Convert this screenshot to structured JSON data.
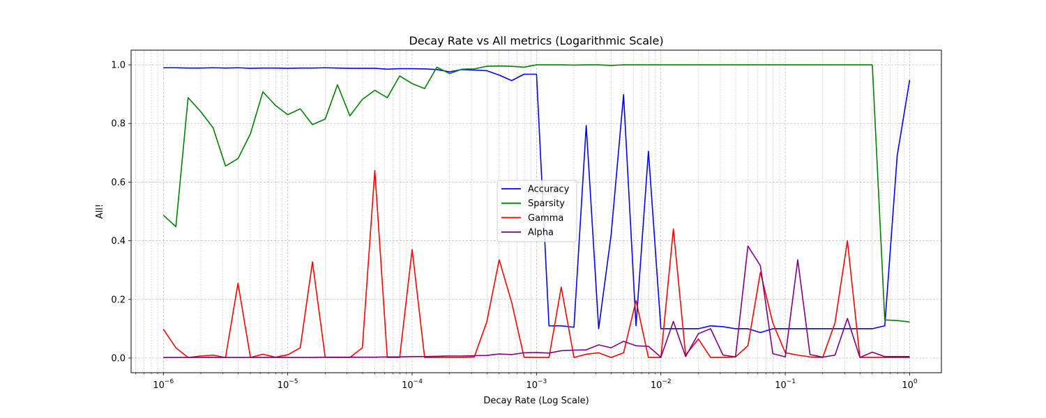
{
  "chart_data": {
    "type": "line",
    "title": "Decay Rate vs All metrics (Logarithmic Scale)",
    "xlabel": "Decay Rate (Log Scale)",
    "ylabel": "All!",
    "xscale": "log",
    "xlim": [
      5.5e-07,
      1.8
    ],
    "ylim": [
      -0.05,
      1.05
    ],
    "x_ticks": [
      {
        "value": 1e-06,
        "base": "10",
        "exp": "−6"
      },
      {
        "value": 1e-05,
        "base": "10",
        "exp": "−5"
      },
      {
        "value": 0.0001,
        "base": "10",
        "exp": "−4"
      },
      {
        "value": 0.001,
        "base": "10",
        "exp": "−3"
      },
      {
        "value": 0.01,
        "base": "10",
        "exp": "−2"
      },
      {
        "value": 0.1,
        "base": "10",
        "exp": "−1"
      },
      {
        "value": 1,
        "base": "10",
        "exp": "0"
      }
    ],
    "y_ticks": [
      "0.0",
      "0.2",
      "0.4",
      "0.6",
      "0.8",
      "1.0"
    ],
    "grid": true,
    "legend_position": "center",
    "series": [
      {
        "name": "Accuracy",
        "color": "#0000ff",
        "points": [
          [
            1e-06,
            0.99
          ],
          [
            1.26e-06,
            0.99
          ],
          [
            1.58e-06,
            0.989
          ],
          [
            2e-06,
            0.989
          ],
          [
            2.51e-06,
            0.99
          ],
          [
            3.16e-06,
            0.989
          ],
          [
            3.98e-06,
            0.99
          ],
          [
            5.01e-06,
            0.988
          ],
          [
            6.31e-06,
            0.989
          ],
          [
            7.94e-06,
            0.989
          ],
          [
            1e-05,
            0.988
          ],
          [
            1.26e-05,
            0.989
          ],
          [
            1.58e-05,
            0.989
          ],
          [
            2e-05,
            0.99
          ],
          [
            2.51e-05,
            0.989
          ],
          [
            3.16e-05,
            0.988
          ],
          [
            3.98e-05,
            0.988
          ],
          [
            5.01e-05,
            0.988
          ],
          [
            6.31e-05,
            0.985
          ],
          [
            7.94e-05,
            0.987
          ],
          [
            0.0001,
            0.987
          ],
          [
            0.000126,
            0.986
          ],
          [
            0.000158,
            0.984
          ],
          [
            0.0002,
            0.976
          ],
          [
            0.000251,
            0.984
          ],
          [
            0.000316,
            0.982
          ],
          [
            0.000398,
            0.98
          ],
          [
            0.000501,
            0.965
          ],
          [
            0.000631,
            0.946
          ],
          [
            0.000794,
            0.968
          ],
          [
            0.001,
            0.968
          ],
          [
            0.00126,
            0.11
          ],
          [
            0.00158,
            0.11
          ],
          [
            0.002,
            0.105
          ],
          [
            0.00251,
            0.793
          ],
          [
            0.00316,
            0.1
          ],
          [
            0.00398,
            0.42
          ],
          [
            0.00501,
            0.898
          ],
          [
            0.00631,
            0.11
          ],
          [
            0.00794,
            0.705
          ],
          [
            0.01,
            0.1
          ],
          [
            0.0126,
            0.1
          ],
          [
            0.0158,
            0.1
          ],
          [
            0.02,
            0.1
          ],
          [
            0.0251,
            0.11
          ],
          [
            0.0316,
            0.107
          ],
          [
            0.0398,
            0.1
          ],
          [
            0.0501,
            0.1
          ],
          [
            0.0631,
            0.087
          ],
          [
            0.0794,
            0.1
          ],
          [
            0.1,
            0.1
          ],
          [
            0.126,
            0.1
          ],
          [
            0.158,
            0.1
          ],
          [
            0.2,
            0.1
          ],
          [
            0.251,
            0.1
          ],
          [
            0.316,
            0.1
          ],
          [
            0.398,
            0.1
          ],
          [
            0.501,
            0.1
          ],
          [
            0.631,
            0.11
          ],
          [
            0.794,
            0.69
          ],
          [
            1.0,
            0.948
          ]
        ]
      },
      {
        "name": "Sparsity",
        "color": "#008000",
        "points": [
          [
            1e-06,
            0.487
          ],
          [
            1.26e-06,
            0.448
          ],
          [
            1.58e-06,
            0.888
          ],
          [
            2e-06,
            0.84
          ],
          [
            2.51e-06,
            0.785
          ],
          [
            3.16e-06,
            0.655
          ],
          [
            3.98e-06,
            0.68
          ],
          [
            5.01e-06,
            0.765
          ],
          [
            6.31e-06,
            0.908
          ],
          [
            7.94e-06,
            0.862
          ],
          [
            1e-05,
            0.83
          ],
          [
            1.26e-05,
            0.85
          ],
          [
            1.58e-05,
            0.796
          ],
          [
            2e-05,
            0.815
          ],
          [
            2.51e-05,
            0.932
          ],
          [
            3.16e-05,
            0.826
          ],
          [
            3.98e-05,
            0.882
          ],
          [
            5.01e-05,
            0.913
          ],
          [
            6.31e-05,
            0.888
          ],
          [
            7.94e-05,
            0.962
          ],
          [
            0.0001,
            0.936
          ],
          [
            0.000126,
            0.919
          ],
          [
            0.000158,
            0.992
          ],
          [
            0.0002,
            0.97
          ],
          [
            0.000251,
            0.985
          ],
          [
            0.000316,
            0.986
          ],
          [
            0.000398,
            0.995
          ],
          [
            0.000501,
            0.996
          ],
          [
            0.000631,
            0.995
          ],
          [
            0.000794,
            0.992
          ],
          [
            0.001,
            1.0
          ],
          [
            0.00126,
            1.0
          ],
          [
            0.00158,
            1.0
          ],
          [
            0.002,
            0.999
          ],
          [
            0.00251,
            1.0
          ],
          [
            0.00316,
            1.0
          ],
          [
            0.00398,
            0.998
          ],
          [
            0.00501,
            1.0
          ],
          [
            0.00631,
            1.0
          ],
          [
            0.00794,
            1.0
          ],
          [
            0.01,
            1.0
          ],
          [
            0.0126,
            1.0
          ],
          [
            0.0158,
            1.0
          ],
          [
            0.02,
            1.0
          ],
          [
            0.0251,
            1.0
          ],
          [
            0.0316,
            1.0
          ],
          [
            0.0398,
            1.0
          ],
          [
            0.0501,
            1.0
          ],
          [
            0.0631,
            1.0
          ],
          [
            0.0794,
            1.0
          ],
          [
            0.1,
            1.0
          ],
          [
            0.126,
            1.0
          ],
          [
            0.158,
            1.0
          ],
          [
            0.2,
            1.0
          ],
          [
            0.251,
            1.0
          ],
          [
            0.316,
            1.0
          ],
          [
            0.398,
            1.0
          ],
          [
            0.501,
            1.0
          ],
          [
            0.631,
            0.13
          ],
          [
            0.794,
            0.128
          ],
          [
            1.0,
            0.123
          ]
        ]
      },
      {
        "name": "Gamma",
        "color": "#ff0000",
        "points": [
          [
            1e-06,
            0.098
          ],
          [
            1.26e-06,
            0.035
          ],
          [
            1.58e-06,
            0.002
          ],
          [
            2e-06,
            0.007
          ],
          [
            2.51e-06,
            0.01
          ],
          [
            3.16e-06,
            0.002
          ],
          [
            3.98e-06,
            0.255
          ],
          [
            5.01e-06,
            0.002
          ],
          [
            6.31e-06,
            0.013
          ],
          [
            7.94e-06,
            0.003
          ],
          [
            1e-05,
            0.011
          ],
          [
            1.26e-05,
            0.035
          ],
          [
            1.58e-05,
            0.328
          ],
          [
            2e-05,
            0.002
          ],
          [
            2.51e-05,
            0.002
          ],
          [
            3.16e-05,
            0.002
          ],
          [
            3.98e-05,
            0.035
          ],
          [
            5.01e-05,
            0.64
          ],
          [
            6.31e-05,
            0.002
          ],
          [
            7.94e-05,
            0.002
          ],
          [
            0.0001,
            0.37
          ],
          [
            0.000126,
            0.002
          ],
          [
            0.000158,
            0.002
          ],
          [
            0.0002,
            0.002
          ],
          [
            0.000251,
            0.002
          ],
          [
            0.000316,
            0.004
          ],
          [
            0.000398,
            0.123
          ],
          [
            0.000501,
            0.335
          ],
          [
            0.000631,
            0.19
          ],
          [
            0.000794,
            0.003
          ],
          [
            0.001,
            0.002
          ],
          [
            0.00126,
            0.002
          ],
          [
            0.00158,
            0.242
          ],
          [
            0.002,
            0.002
          ],
          [
            0.00251,
            0.013
          ],
          [
            0.00316,
            0.018
          ],
          [
            0.00398,
            0.002
          ],
          [
            0.00501,
            0.018
          ],
          [
            0.00631,
            0.196
          ],
          [
            0.00794,
            0.002
          ],
          [
            0.01,
            0.002
          ],
          [
            0.0126,
            0.44
          ],
          [
            0.0158,
            0.01
          ],
          [
            0.02,
            0.065
          ],
          [
            0.0251,
            0.002
          ],
          [
            0.0316,
            0.002
          ],
          [
            0.0398,
            0.004
          ],
          [
            0.0501,
            0.042
          ],
          [
            0.0631,
            0.293
          ],
          [
            0.0794,
            0.12
          ],
          [
            0.1,
            0.018
          ],
          [
            0.126,
            0.01
          ],
          [
            0.158,
            0.004
          ],
          [
            0.2,
            0.002
          ],
          [
            0.251,
            0.12
          ],
          [
            0.316,
            0.4
          ],
          [
            0.398,
            0.002
          ],
          [
            0.501,
            0.002
          ],
          [
            0.631,
            0.002
          ],
          [
            0.794,
            0.002
          ],
          [
            1.0,
            0.002
          ]
        ]
      },
      {
        "name": "Alpha",
        "color": "#800080",
        "points": [
          [
            1e-06,
            0.002
          ],
          [
            1.26e-06,
            0.002
          ],
          [
            1.58e-06,
            0.002
          ],
          [
            2e-06,
            0.002
          ],
          [
            2.51e-06,
            0.002
          ],
          [
            3.16e-06,
            0.002
          ],
          [
            3.98e-06,
            0.002
          ],
          [
            5.01e-06,
            0.002
          ],
          [
            6.31e-06,
            0.002
          ],
          [
            7.94e-06,
            0.002
          ],
          [
            1e-05,
            0.002
          ],
          [
            1.26e-05,
            0.002
          ],
          [
            1.58e-05,
            0.002
          ],
          [
            2e-05,
            0.003
          ],
          [
            2.51e-05,
            0.003
          ],
          [
            3.16e-05,
            0.003
          ],
          [
            3.98e-05,
            0.003
          ],
          [
            5.01e-05,
            0.003
          ],
          [
            6.31e-05,
            0.004
          ],
          [
            7.94e-05,
            0.004
          ],
          [
            0.0001,
            0.005
          ],
          [
            0.000126,
            0.005
          ],
          [
            0.000158,
            0.006
          ],
          [
            0.0002,
            0.007
          ],
          [
            0.000251,
            0.007
          ],
          [
            0.000316,
            0.008
          ],
          [
            0.000398,
            0.009
          ],
          [
            0.000501,
            0.014
          ],
          [
            0.000631,
            0.012
          ],
          [
            0.000794,
            0.018
          ],
          [
            0.001,
            0.019
          ],
          [
            0.00126,
            0.017
          ],
          [
            0.00158,
            0.025
          ],
          [
            0.002,
            0.027
          ],
          [
            0.00251,
            0.028
          ],
          [
            0.00316,
            0.045
          ],
          [
            0.00398,
            0.035
          ],
          [
            0.00501,
            0.057
          ],
          [
            0.00631,
            0.042
          ],
          [
            0.00794,
            0.04
          ],
          [
            0.01,
            0.003
          ],
          [
            0.0126,
            0.125
          ],
          [
            0.0158,
            0.005
          ],
          [
            0.02,
            0.083
          ],
          [
            0.0251,
            0.1
          ],
          [
            0.0316,
            0.01
          ],
          [
            0.0398,
            0.004
          ],
          [
            0.0501,
            0.382
          ],
          [
            0.0631,
            0.315
          ],
          [
            0.0794,
            0.015
          ],
          [
            0.1,
            0.004
          ],
          [
            0.126,
            0.335
          ],
          [
            0.158,
            0.012
          ],
          [
            0.2,
            0.003
          ],
          [
            0.251,
            0.01
          ],
          [
            0.316,
            0.135
          ],
          [
            0.398,
            0.002
          ],
          [
            0.501,
            0.02
          ],
          [
            0.631,
            0.005
          ],
          [
            0.794,
            0.005
          ],
          [
            1.0,
            0.005
          ]
        ]
      }
    ]
  }
}
